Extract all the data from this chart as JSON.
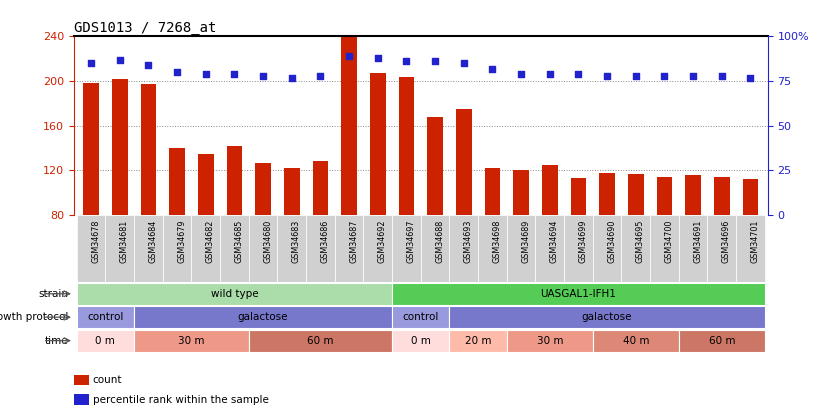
{
  "title": "GDS1013 / 7268_at",
  "samples": [
    "GSM34678",
    "GSM34681",
    "GSM34684",
    "GSM34679",
    "GSM34682",
    "GSM34685",
    "GSM34680",
    "GSM34683",
    "GSM34686",
    "GSM34687",
    "GSM34692",
    "GSM34697",
    "GSM34688",
    "GSM34693",
    "GSM34698",
    "GSM34689",
    "GSM34694",
    "GSM34699",
    "GSM34690",
    "GSM34695",
    "GSM34700",
    "GSM34691",
    "GSM34696",
    "GSM34701"
  ],
  "counts": [
    198,
    202,
    197,
    140,
    135,
    142,
    127,
    122,
    128,
    242,
    207,
    204,
    168,
    175,
    122,
    120,
    125,
    113,
    118,
    117,
    114,
    116,
    114,
    112
  ],
  "percentiles": [
    85,
    87,
    84,
    80,
    79,
    79,
    78,
    77,
    78,
    89,
    88,
    86,
    86,
    85,
    82,
    79,
    79,
    79,
    78,
    78,
    78,
    78,
    78,
    77
  ],
  "ymin": 80,
  "ymax": 240,
  "yticks": [
    80,
    120,
    160,
    200,
    240
  ],
  "right_yticks": [
    0,
    25,
    50,
    75,
    100
  ],
  "right_yticklabels": [
    "0",
    "25",
    "50",
    "75",
    "100%"
  ],
  "bar_color": "#cc2200",
  "dot_color": "#2222cc",
  "grid_color": "#888888",
  "bg_color": "#ffffff",
  "strain_row": {
    "groups": [
      {
        "label": "wild type",
        "start": 0,
        "end": 11,
        "color": "#aaddaa"
      },
      {
        "label": "UASGAL1-IFH1",
        "start": 11,
        "end": 24,
        "color": "#55cc55"
      }
    ]
  },
  "growth_protocol_row": {
    "groups": [
      {
        "label": "control",
        "start": 0,
        "end": 2,
        "color": "#9999dd"
      },
      {
        "label": "galactose",
        "start": 2,
        "end": 11,
        "color": "#7777cc"
      },
      {
        "label": "control",
        "start": 11,
        "end": 13,
        "color": "#9999dd"
      },
      {
        "label": "galactose",
        "start": 13,
        "end": 24,
        "color": "#7777cc"
      }
    ]
  },
  "time_row": {
    "groups": [
      {
        "label": "0 m",
        "start": 0,
        "end": 2,
        "color": "#ffdddd"
      },
      {
        "label": "30 m",
        "start": 2,
        "end": 6,
        "color": "#ee9988"
      },
      {
        "label": "60 m",
        "start": 6,
        "end": 11,
        "color": "#cc7766"
      },
      {
        "label": "0 m",
        "start": 11,
        "end": 13,
        "color": "#ffdddd"
      },
      {
        "label": "20 m",
        "start": 13,
        "end": 15,
        "color": "#ffbbaa"
      },
      {
        "label": "30 m",
        "start": 15,
        "end": 18,
        "color": "#ee9988"
      },
      {
        "label": "40 m",
        "start": 18,
        "end": 21,
        "color": "#dd8877"
      },
      {
        "label": "60 m",
        "start": 21,
        "end": 24,
        "color": "#cc7766"
      }
    ]
  },
  "row_labels": [
    "strain",
    "growth protocol",
    "time"
  ],
  "legend_items": [
    {
      "label": "count",
      "color": "#cc2200"
    },
    {
      "label": "percentile rank within the sample",
      "color": "#2222cc"
    }
  ]
}
